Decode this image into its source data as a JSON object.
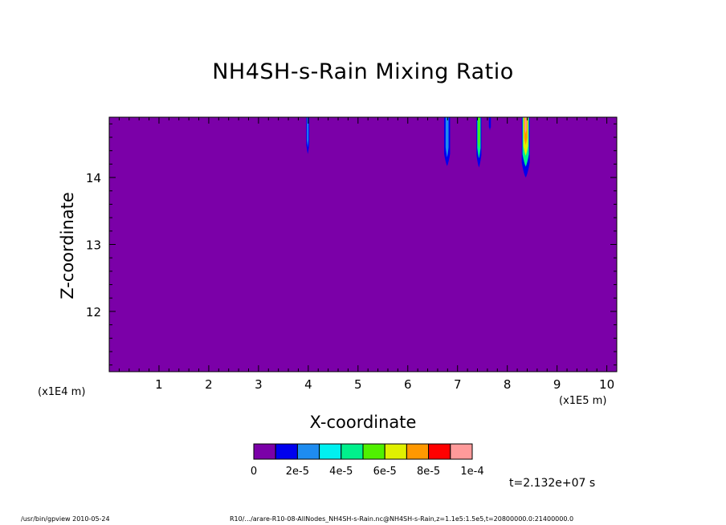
{
  "chart_data": {
    "type": "heatmap",
    "title": "NH4SH-s-Rain Mixing Ratio",
    "xlabel": "X-coordinate",
    "ylabel": "Z-coordinate",
    "x_unit": "(x1E5 m)",
    "y_unit": "(x1E4 m)",
    "xlim": [
      0,
      10.2
    ],
    "ylim": [
      11.1,
      14.9
    ],
    "x_ticks": [
      "1",
      "2",
      "3",
      "4",
      "5",
      "6",
      "7",
      "8",
      "9",
      "10"
    ],
    "x_tick_values": [
      1,
      2,
      3,
      4,
      5,
      6,
      7,
      8,
      9,
      10
    ],
    "y_ticks": [
      "12",
      "13",
      "14"
    ],
    "y_tick_values": [
      12,
      13,
      14
    ],
    "background_level": 0,
    "colorbar": {
      "colors": [
        "#7b00a8",
        "#0000ee",
        "#1e8cf0",
        "#00f0f0",
        "#00f08c",
        "#50f000",
        "#e0f000",
        "#ff9800",
        "#ff0000",
        "#ff9a9a"
      ],
      "labels": [
        "0",
        "2e-5",
        "4e-5",
        "6e-5",
        "8e-5",
        "1e-4"
      ],
      "label_indices": [
        0,
        2,
        4,
        6,
        8,
        10
      ]
    },
    "features": [
      {
        "x_center": 3.99,
        "half_width": 0.03,
        "z_bottom": 14.35,
        "colors": [
          "#0000ee",
          "#1e8cf0"
        ]
      },
      {
        "x_center": 6.79,
        "half_width": 0.06,
        "z_bottom": 14.17,
        "colors": [
          "#0000ee",
          "#1e8cf0"
        ]
      },
      {
        "x_center": 7.43,
        "half_width": 0.05,
        "z_bottom": 14.15,
        "colors": [
          "#0000ee",
          "#00f08c",
          "#50f000"
        ]
      },
      {
        "x_center": 7.65,
        "half_width": 0.02,
        "z_bottom": 14.7,
        "colors": [
          "#0000ee"
        ]
      },
      {
        "x_center": 8.37,
        "half_width": 0.08,
        "z_bottom": 14.0,
        "colors": [
          "#0000ee",
          "#00f08c",
          "#e0f000",
          "#ff9800",
          "#ff9a9a"
        ]
      }
    ]
  },
  "annotations": {
    "time": "t=2.132e+07 s",
    "footer_left": "/usr/bin/gpview  2010-05-24",
    "footer_right": "R10/.../arare-R10-08-AllNodes_NH4SH-s-Rain.nc@NH4SH-s-Rain,z=1.1e5:1.5e5,t=20800000.0:21400000.0"
  }
}
